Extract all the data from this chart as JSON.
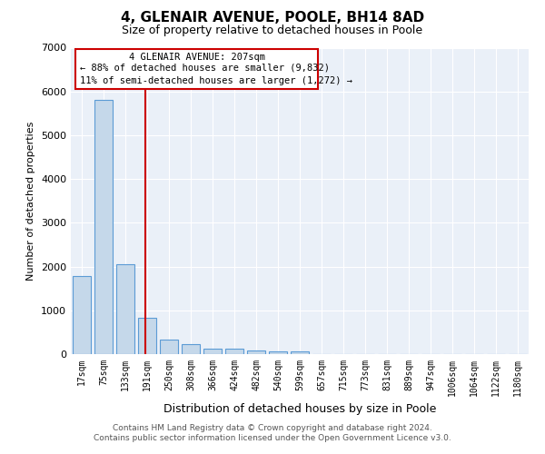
{
  "title": "4, GLENAIR AVENUE, POOLE, BH14 8AD",
  "subtitle": "Size of property relative to detached houses in Poole",
  "xlabel": "Distribution of detached houses by size in Poole",
  "ylabel": "Number of detached properties",
  "bar_color": "#c5d8ea",
  "bar_edge_color": "#5b9bd5",
  "background_color": "#eaf0f8",
  "grid_color": "#ffffff",
  "annotation_box_color": "#cc0000",
  "vline_color": "#cc0000",
  "categories": [
    "17sqm",
    "75sqm",
    "133sqm",
    "191sqm",
    "250sqm",
    "308sqm",
    "366sqm",
    "424sqm",
    "482sqm",
    "540sqm",
    "599sqm",
    "657sqm",
    "715sqm",
    "773sqm",
    "831sqm",
    "889sqm",
    "947sqm",
    "1006sqm",
    "1064sqm",
    "1122sqm",
    "1180sqm"
  ],
  "values": [
    1780,
    5800,
    2060,
    830,
    340,
    225,
    130,
    115,
    75,
    65,
    60,
    0,
    0,
    0,
    0,
    0,
    0,
    0,
    0,
    0,
    0
  ],
  "ylim": [
    0,
    7000
  ],
  "yticks": [
    0,
    1000,
    2000,
    3000,
    4000,
    5000,
    6000,
    7000
  ],
  "vline_bar_index": 3,
  "annotation_text_line1": "4 GLENAIR AVENUE: 207sqm",
  "annotation_text_line2": "← 88% of detached houses are smaller (9,832)",
  "annotation_text_line3": "11% of semi-detached houses are larger (1,272) →",
  "footer_line1": "Contains HM Land Registry data © Crown copyright and database right 2024.",
  "footer_line2": "Contains public sector information licensed under the Open Government Licence v3.0."
}
